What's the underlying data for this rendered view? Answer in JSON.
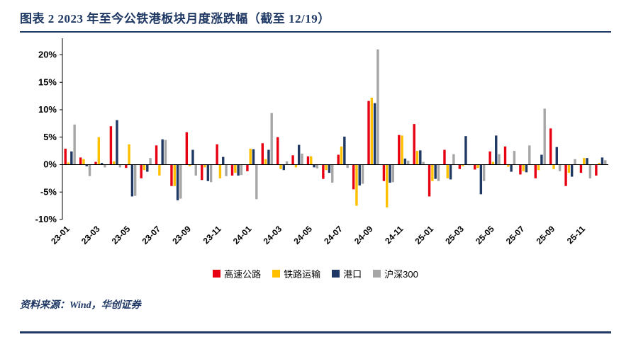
{
  "header": {
    "title": "图表 2  2023 年至今公铁港板块月度涨跌幅（截至 12/19）"
  },
  "footer": {
    "source": "资料来源：Wind，华创证券"
  },
  "colors": {
    "accent_navy": "#1F3864",
    "highway_red": "#E60012",
    "railway_yellow": "#FFC000",
    "port_navy": "#1F3864",
    "csi300_gray": "#A6A6A6"
  },
  "chart_data": {
    "type": "bar",
    "title": "2023 年至今公铁港板块月度涨跌幅（截至 12/19）",
    "categories": [
      "23-01",
      "23-02",
      "23-03",
      "23-04",
      "23-05",
      "23-06",
      "23-07",
      "23-08",
      "23-09",
      "23-10",
      "23-11",
      "23-12",
      "24-01",
      "24-02",
      "24-03",
      "24-04",
      "24-05",
      "24-06",
      "24-07",
      "24-08",
      "24-09",
      "24-10",
      "24-11",
      "24-12",
      "25-01",
      "25-02",
      "25-03",
      "25-04",
      "25-05",
      "25-06",
      "25-07",
      "25-08",
      "25-09",
      "25-10",
      "25-11",
      "25-12"
    ],
    "series": [
      {
        "name": "高速公路",
        "color": "#E60012",
        "values": [
          2.9,
          1.3,
          0.5,
          7.0,
          -0.6,
          -2.5,
          3.5,
          -3.9,
          5.9,
          -2.8,
          3.7,
          -2.0,
          -1.2,
          3.9,
          5.0,
          1.7,
          1.5,
          -2.6,
          1.8,
          -4.5,
          11.6,
          -3.0,
          5.4,
          7.4,
          -5.8,
          2.7,
          -0.8,
          -0.9,
          2.4,
          3.3,
          -1.8,
          -2.5,
          6.6,
          -3.9,
          -1.5,
          -2.0
        ]
      },
      {
        "name": "铁路运输",
        "color": "#FFC000",
        "values": [
          0.4,
          1.0,
          5.0,
          0.6,
          3.7,
          -1.0,
          -2.0,
          -3.9,
          -0.3,
          -0.5,
          -2.5,
          -1.5,
          2.9,
          1.0,
          -0.8,
          -0.5,
          1.5,
          -1.0,
          3.3,
          -7.5,
          12.2,
          -7.8,
          5.3,
          2.5,
          -3.0,
          -2.5,
          -0.3,
          -0.6,
          0.5,
          -0.4,
          -1.2,
          -1.0,
          -0.8,
          -1.5,
          1.2,
          0.3
        ]
      },
      {
        "name": "港口",
        "color": "#1F3864",
        "values": [
          2.4,
          -0.3,
          0.3,
          8.1,
          -5.8,
          -1.3,
          4.6,
          -6.5,
          2.7,
          -3.0,
          1.4,
          -2.0,
          2.8,
          2.7,
          -1.0,
          3.6,
          -0.5,
          -1.5,
          5.1,
          -3.8,
          11.2,
          -3.3,
          1.1,
          2.6,
          -2.6,
          -2.7,
          5.2,
          -5.4,
          5.3,
          -1.3,
          -1.4,
          1.8,
          3.2,
          -2.2,
          1.2,
          1.3
        ]
      },
      {
        "name": "沪深300",
        "color": "#A6A6A6",
        "values": [
          7.3,
          -2.1,
          -0.5,
          -0.5,
          -5.7,
          1.2,
          4.5,
          -6.2,
          -2.0,
          -3.2,
          -2.1,
          -1.9,
          -6.3,
          9.4,
          0.6,
          2.0,
          -0.7,
          -3.3,
          -0.6,
          -3.5,
          21.0,
          -3.2,
          0.7,
          0.5,
          -3.0,
          1.9,
          -0.1,
          -3.0,
          1.9,
          2.5,
          3.5,
          10.2,
          -1.2,
          1.0,
          -2.5,
          0.8
        ]
      }
    ],
    "ylim": [
      -10,
      22
    ],
    "yticks": [
      20,
      15,
      10,
      5,
      0,
      -5,
      -10
    ],
    "ytick_suffix": "%",
    "x_tick_every": 2,
    "grid": false,
    "legend_position": "bottom"
  }
}
